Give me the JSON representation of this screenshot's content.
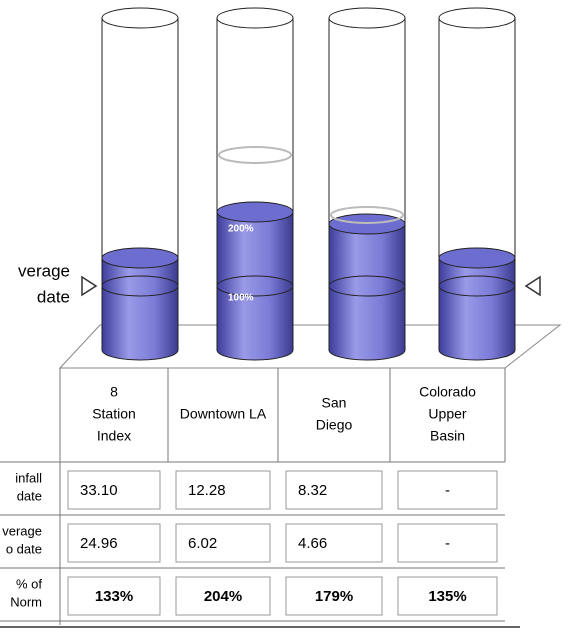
{
  "gauges": {
    "scale_labels": [
      "200%",
      "100%"
    ],
    "average_label": [
      "verage",
      "date"
    ]
  },
  "table": {
    "columns": [
      [
        "8",
        "Station",
        "Index"
      ],
      [
        "Downtown LA"
      ],
      [
        "San",
        "Diego"
      ],
      [
        "Colorado",
        "Upper",
        "Basin"
      ]
    ],
    "rows": [
      {
        "label": [
          "infall",
          "date"
        ],
        "cells": [
          "33.10",
          "12.28",
          "8.32",
          "-"
        ]
      },
      {
        "label": [
          "verage",
          "o date"
        ],
        "cells": [
          "24.96",
          "6.02",
          "4.66",
          "-"
        ]
      },
      {
        "label": [
          "% of",
          "Norm"
        ],
        "cells": [
          "133%",
          "204%",
          "179%",
          "135%"
        ]
      }
    ]
  }
}
